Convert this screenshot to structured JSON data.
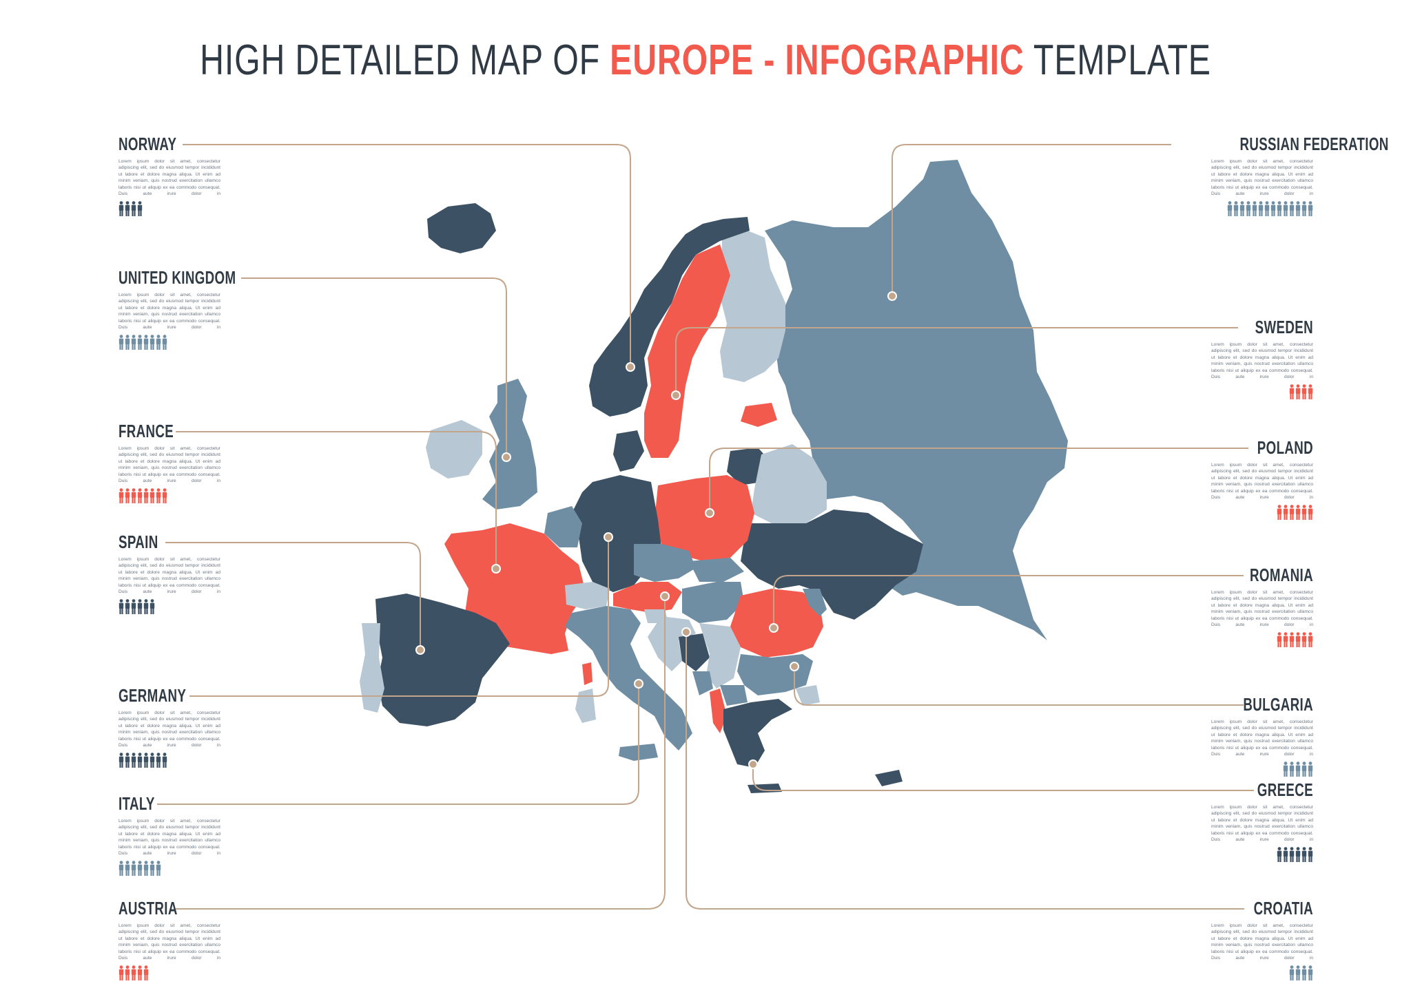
{
  "title": {
    "part1": "HIGH DETAILED MAP OF ",
    "accent1": "EUROPE",
    "sep": " - ",
    "accent2": "INFOGRAPHIC",
    "part2": " TEMPLATE"
  },
  "colors": {
    "dark": "#3c5163",
    "mid": "#6f8ea3",
    "light": "#b7c8d4",
    "red": "#f25a4e",
    "line": "#c2a58a",
    "text": "#2f3a44"
  },
  "lorem": "Lorem ipsum dolor sit amet, consectetur adipiscing elit, sed do eiusmod tempor incididunt ut labore et dolore magna aliqua. Ut enim ad minim veniam, quis nostrud exercitation ullamco laboris nisi ut aliquip ex ea commodo consequat. Duis aute irure dolor in",
  "left_panels": [
    {
      "name": "NORWAY",
      "count": 4,
      "color": "dark"
    },
    {
      "name": "UNITED KINGDOM",
      "count": 8,
      "color": "mid"
    },
    {
      "name": "FRANCE",
      "count": 8,
      "color": "red"
    },
    {
      "name": "SPAIN",
      "count": 6,
      "color": "dark"
    },
    {
      "name": "GERMANY",
      "count": 8,
      "color": "dark"
    },
    {
      "name": "ITALY",
      "count": 7,
      "color": "mid"
    },
    {
      "name": "AUSTRIA",
      "count": 5,
      "color": "red"
    }
  ],
  "right_panels": [
    {
      "name": "RUSSIAN FEDERATION",
      "count": 14,
      "color": "mid"
    },
    {
      "name": "SWEDEN",
      "count": 4,
      "color": "red"
    },
    {
      "name": "POLAND",
      "count": 6,
      "color": "red"
    },
    {
      "name": "ROMANIA",
      "count": 6,
      "color": "red"
    },
    {
      "name": "BULGARIA",
      "count": 5,
      "color": "mid"
    },
    {
      "name": "GREECE",
      "count": 6,
      "color": "dark"
    },
    {
      "name": "CROATIA",
      "count": 4,
      "color": "mid"
    }
  ]
}
